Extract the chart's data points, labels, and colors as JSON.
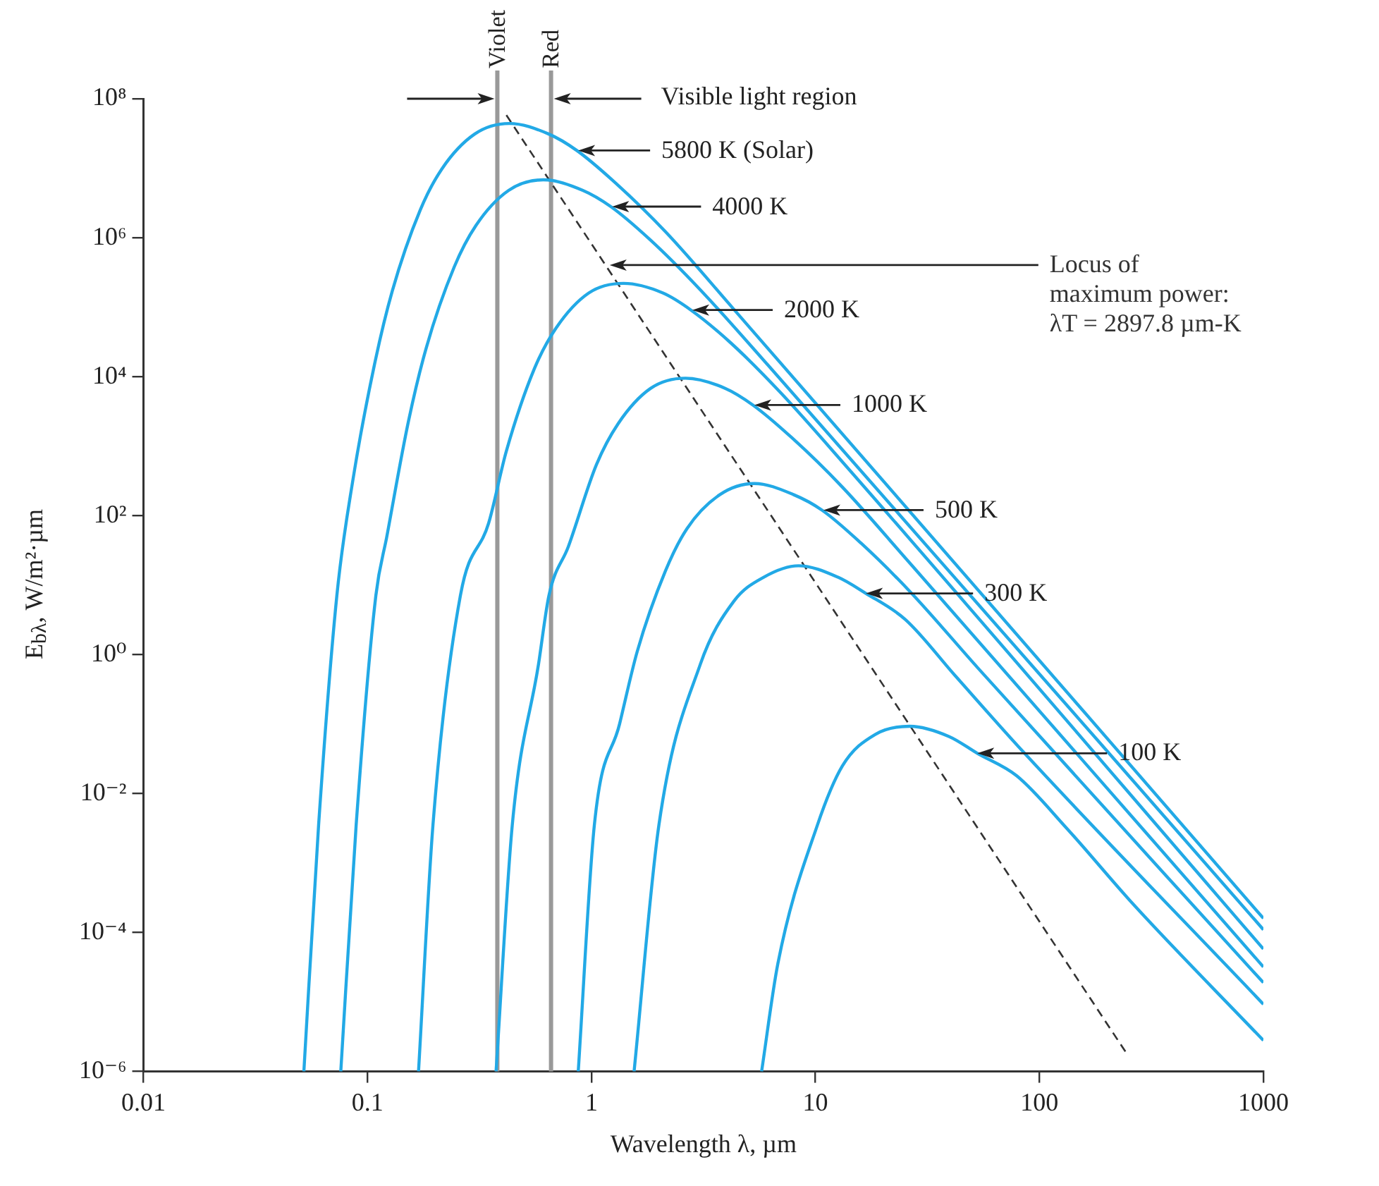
{
  "chart_data": {
    "type": "line",
    "xlabel": "Wavelength λ, µm",
    "ylabel": "E$_{bλ}$, W/m²·µm",
    "log": "xy",
    "marker": "none",
    "xlim": [
      0.01,
      1000
    ],
    "xticks": [
      0.01,
      0.1,
      1,
      10,
      100,
      1000
    ],
    "ylim": [
      1e-06,
      100000000.0
    ],
    "yticks": [
      {
        "value": 1e-06,
        "label": "10⁻⁶"
      },
      {
        "value": 0.0001,
        "label": "10⁻⁴"
      },
      {
        "value": 0.01,
        "label": "10⁻²"
      },
      {
        "value": 1,
        "label": "10⁰"
      },
      {
        "value": 100,
        "label": "10²"
      },
      {
        "value": 10000.0,
        "label": "10⁴"
      },
      {
        "value": 1000000.0,
        "label": "10⁶"
      },
      {
        "value": 100000000.0,
        "label": "10⁸"
      }
    ],
    "series": [
      {
        "color": "#22a9e6",
        "x": [
          0.052,
          0.0605,
          0.073,
          0.086,
          0.1075,
          0.129,
          0.172,
          0.215,
          0.301,
          0.43,
          0.645,
          0.86,
          1.29,
          2.15,
          4.3,
          1000
        ],
        "values": [
          1e-06,
          0.0035,
          7.1,
          320,
          15000.0,
          170000.0,
          2500000.0,
          9800000.0,
          31000000.0,
          44000000.0,
          31000000.0,
          18000000.0,
          6000000.0,
          1200000.0,
          95000.0,
          0.00016
        ]
      },
      {
        "color": "#22a9e6",
        "x": [
          0.076,
          0.089,
          0.109,
          0.122,
          0.1525,
          0.183,
          0.244,
          0.305,
          0.427,
          0.61,
          0.915,
          1.22,
          1.83,
          3.05,
          6.1,
          1000
        ],
        "values": [
          1e-06,
          0.0035,
          7.1,
          50,
          2300,
          26000.0,
          380000.0,
          1500000.0,
          4800000.0,
          6800000.0,
          4800000.0,
          2800000.0,
          930000.0,
          180000.0,
          15000.0,
          0.00011
        ]
      },
      {
        "color": "#22a9e6",
        "x": [
          0.169,
          0.196,
          0.26,
          0.3475,
          0.417,
          0.556,
          0.695,
          0.973,
          1.39,
          2.085,
          2.78,
          4.17,
          6.95,
          13.9,
          1000
        ],
        "values": [
          1e-06,
          0.0035,
          7.1,
          78,
          850,
          13000.0,
          50000.0,
          160000.0,
          220000.0,
          160000.0,
          91000.0,
          31000.0,
          6000,
          490,
          5.8e-05
        ]
      },
      {
        "color": "#22a9e6",
        "x": [
          0.375,
          0.443,
          0.58,
          0.646,
          0.789,
          1.052,
          1.315,
          1.84,
          2.63,
          3.95,
          5.26,
          7.89,
          13.15,
          26.3,
          1000
        ],
        "values": [
          1e-06,
          0.0035,
          0.72,
          7.1,
          36,
          540,
          2100,
          6800,
          9500,
          6800,
          3900,
          1300,
          260,
          21,
          3.2e-05
        ]
      },
      {
        "color": "#22a9e6",
        "x": [
          0.873,
          1.03,
          1.335,
          1.6,
          2.14,
          2.67,
          3.74,
          5.34,
          8.0,
          10.7,
          16.0,
          26.7,
          53.4,
          1000
        ],
        "values": [
          1e-06,
          0.0035,
          0.1,
          1.1,
          16,
          65,
          200,
          290,
          200,
          120,
          40,
          7.8,
          0.63,
          1.9e-05
        ]
      },
      {
        "color": "#22a9e6",
        "x": [
          1.55,
          2.0,
          3.06,
          4.33,
          5.88,
          8.4,
          12.6,
          16.8,
          25.2,
          42,
          84,
          1000
        ],
        "values": [
          1e-06,
          0.0035,
          0.72,
          5.9,
          13,
          19,
          13,
          7.6,
          3.2,
          0.5,
          0.041,
          9.3e-06
        ]
      },
      {
        "color": "#22a9e6",
        "x": [
          5.75,
          6.8,
          10.2,
          13.2,
          18.5,
          26.4,
          39.6,
          52.8,
          79.2,
          132,
          264,
          1000
        ],
        "values": [
          1e-06,
          3.6e-05,
          0.0035,
          0.025,
          0.071,
          0.093,
          0.066,
          0.038,
          0.018,
          0.0032,
          0.00025,
          2.8e-06
        ]
      },
      {
        "name": "Locus of\nmaximum power:\nλT = 2897.8 µm-K",
        "color": "#333333",
        "line_style": "dashed",
        "x": [
          0.417,
          243
        ],
        "values": [
          58000000.0,
          1.9e-06
        ]
      }
    ],
    "ref_lines": [
      {
        "axis": "x",
        "value": 0.38,
        "label": "Violet",
        "color": "#999999"
      },
      {
        "axis": "x",
        "value": 0.66,
        "label": "Red",
        "color": "#999999"
      }
    ],
    "annotations": [
      "Visible light region",
      "5800 K (Solar)",
      "4000 K",
      "2000 K",
      "1000 K",
      "500 K",
      {
        "text": "300 K",
        "x": 16.8,
        "y": 7.6
      },
      {
        "text": "100 K",
        "x": 52.8,
        "y": 0.038
      }
    ]
  }
}
